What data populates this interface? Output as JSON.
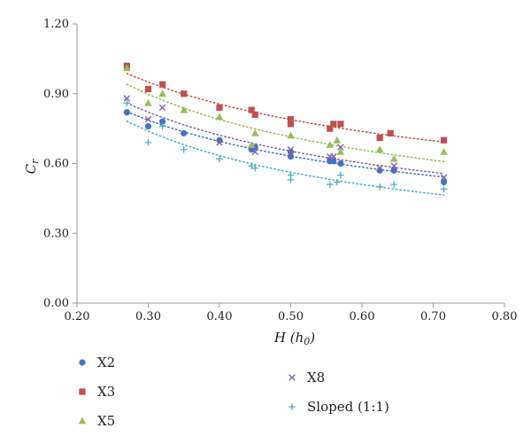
{
  "chart_data": {
    "type": "scatter",
    "xlabel": "H (h₀)",
    "xlabel_main": "H",
    "xlabel_sub": "h",
    "xlabel_subscript": "0",
    "ylabel_main": "C",
    "ylabel_subscript": "r",
    "xlim": [
      0.2,
      0.8
    ],
    "ylim": [
      0.0,
      1.2
    ],
    "x_ticks": [
      "0.20",
      "0.30",
      "0.40",
      "0.50",
      "0.60",
      "0.70",
      "0.80"
    ],
    "y_ticks": [
      "0.00",
      "0.30",
      "0.60",
      "0.90",
      "1.20"
    ],
    "grid": false,
    "legend_position": "bottom",
    "trendlines": "dotted power fit per series",
    "series": [
      {
        "name": "X2",
        "marker": "circle",
        "color": "#4472c4",
        "x": [
          0.27,
          0.3,
          0.32,
          0.35,
          0.4,
          0.445,
          0.45,
          0.5,
          0.5,
          0.555,
          0.56,
          0.57,
          0.625,
          0.645,
          0.715
        ],
        "y": [
          0.82,
          0.76,
          0.78,
          0.73,
          0.7,
          0.66,
          0.67,
          0.63,
          0.65,
          0.61,
          0.61,
          0.6,
          0.57,
          0.57,
          0.52
        ]
      },
      {
        "name": "X3",
        "marker": "square",
        "color": "#c0504d",
        "x": [
          0.27,
          0.3,
          0.32,
          0.35,
          0.4,
          0.445,
          0.45,
          0.5,
          0.5,
          0.555,
          0.56,
          0.57,
          0.625,
          0.64,
          0.715
        ],
        "y": [
          1.02,
          0.92,
          0.94,
          0.9,
          0.84,
          0.83,
          0.81,
          0.79,
          0.77,
          0.75,
          0.77,
          0.77,
          0.71,
          0.73,
          0.7
        ]
      },
      {
        "name": "X5",
        "marker": "triangle",
        "color": "#9bbb59",
        "x": [
          0.27,
          0.3,
          0.32,
          0.35,
          0.4,
          0.445,
          0.45,
          0.5,
          0.555,
          0.565,
          0.57,
          0.625,
          0.645,
          0.715
        ],
        "y": [
          1.01,
          0.86,
          0.9,
          0.83,
          0.8,
          0.68,
          0.73,
          0.72,
          0.68,
          0.7,
          0.65,
          0.66,
          0.62,
          0.65
        ]
      },
      {
        "name": "X8",
        "marker": "x",
        "color": "#8064a2",
        "x": [
          0.27,
          0.3,
          0.32,
          0.4,
          0.45,
          0.5,
          0.5,
          0.555,
          0.56,
          0.57,
          0.625,
          0.645,
          0.715
        ],
        "y": [
          0.88,
          0.79,
          0.84,
          0.69,
          0.65,
          0.66,
          0.64,
          0.63,
          0.63,
          0.67,
          0.58,
          0.59,
          0.54
        ]
      },
      {
        "name": "Sloped (1:1)",
        "marker": "plus",
        "color": "#4bacc6",
        "x": [
          0.27,
          0.3,
          0.32,
          0.35,
          0.4,
          0.445,
          0.45,
          0.5,
          0.5,
          0.555,
          0.565,
          0.57,
          0.625,
          0.645,
          0.715
        ],
        "y": [
          0.86,
          0.69,
          0.76,
          0.66,
          0.62,
          0.59,
          0.58,
          0.55,
          0.53,
          0.51,
          0.52,
          0.55,
          0.5,
          0.51,
          0.49
        ]
      }
    ]
  }
}
